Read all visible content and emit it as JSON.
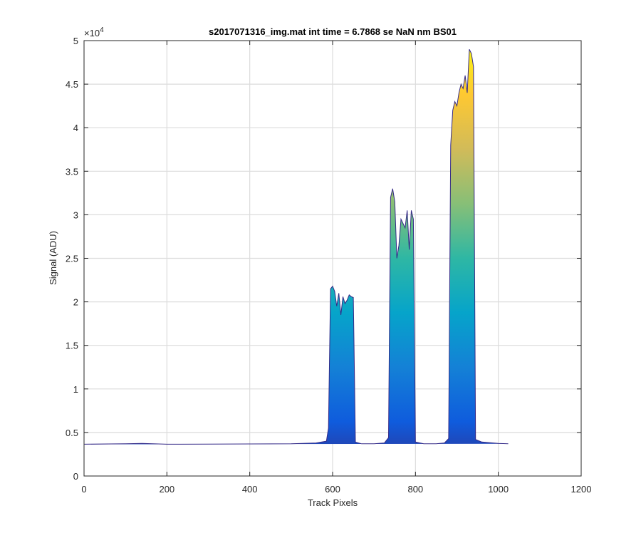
{
  "chart_data": {
    "type": "area",
    "title": "s2017071316_img.mat int time = 6.7868 se  NaN nm BS01",
    "xlabel": "Track Pixels",
    "ylabel": "Signal (ADU)",
    "y_exponent_label": "×10",
    "y_exponent": "4",
    "xlim": [
      0,
      1200
    ],
    "ylim": [
      0,
      50000
    ],
    "x_ticks": [
      0,
      200,
      400,
      600,
      800,
      1000,
      1200
    ],
    "x_tick_labels": [
      "0",
      "200",
      "400",
      "600",
      "800",
      "1000",
      "1200"
    ],
    "y_ticks": [
      0,
      5000,
      10000,
      15000,
      20000,
      25000,
      30000,
      35000,
      40000,
      45000,
      50000
    ],
    "y_tick_labels": [
      "0",
      "0.5",
      "1",
      "1.5",
      "2",
      "2.5",
      "3",
      "3.5",
      "4",
      "4.5",
      "5"
    ],
    "grid": true,
    "colormap": "parula",
    "colors": {
      "axis": "#262626",
      "grid": "#dcdcdc",
      "colormap_stops": [
        "#352a87",
        "#0f5cdd",
        "#1481d6",
        "#06a4ca",
        "#2eb7a4",
        "#87bf77",
        "#d1bb59",
        "#fec832",
        "#f9fb0e"
      ]
    },
    "series": [
      {
        "x": [
          1,
          100,
          140,
          200,
          300,
          400,
          500,
          560,
          585,
          590,
          595,
          600,
          605,
          610,
          615,
          620,
          625,
          630,
          635,
          640,
          645,
          650,
          655,
          670,
          700,
          725,
          735,
          740,
          745,
          750,
          755,
          760,
          765,
          770,
          775,
          780,
          785,
          790,
          795,
          800,
          820,
          850,
          870,
          880,
          885,
          890,
          895,
          900,
          905,
          910,
          915,
          920,
          925,
          930,
          935,
          940,
          945,
          960,
          1000,
          1024
        ],
        "y": [
          3650,
          3700,
          3750,
          3650,
          3660,
          3680,
          3700,
          3800,
          4000,
          5500,
          21500,
          21800,
          21200,
          19500,
          21000,
          18500,
          20600,
          19800,
          20200,
          20800,
          20600,
          20500,
          3900,
          3700,
          3700,
          3800,
          4400,
          32000,
          33000,
          31500,
          25000,
          26500,
          29500,
          29000,
          28500,
          30500,
          26000,
          30500,
          29500,
          3900,
          3700,
          3700,
          3800,
          4300,
          38000,
          42000,
          43000,
          42500,
          44000,
          45000,
          44500,
          46000,
          44000,
          49000,
          48500,
          47000,
          4200,
          3900,
          3750,
          3700
        ]
      }
    ]
  }
}
